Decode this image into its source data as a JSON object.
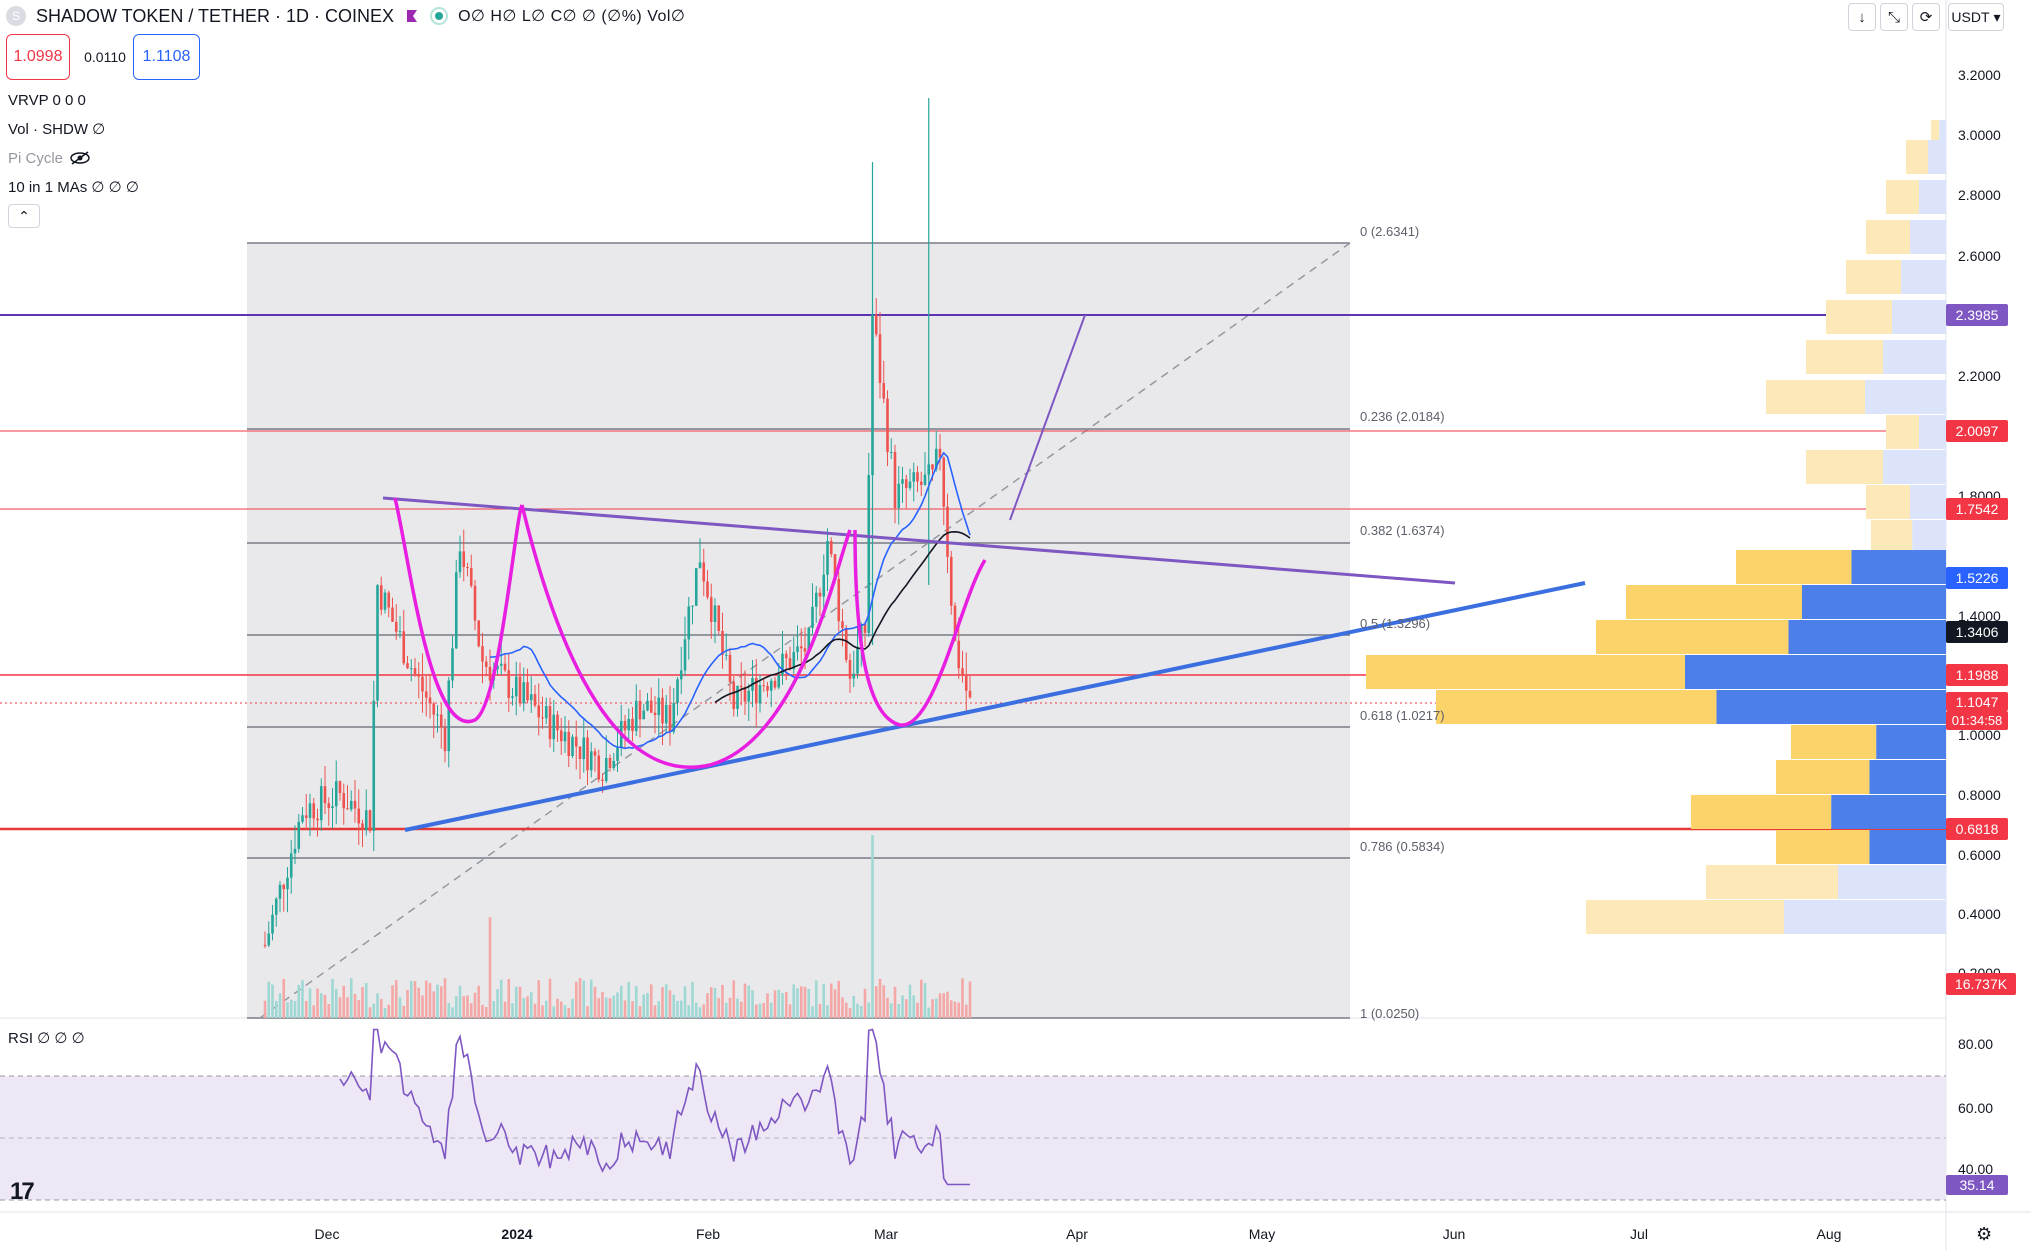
{
  "header": {
    "symbol_title": "SHADOW TOKEN / TETHER · 1D · COINEX",
    "coin_letter": "S",
    "ohlc_text": "O∅ H∅ L∅ C∅ ∅ (∅%) Vol∅",
    "sell_price": "1.0998",
    "spread": "0.0110",
    "buy_price": "1.1108"
  },
  "indicators": [
    {
      "label": "VRVP  0  0  0"
    },
    {
      "label": "Vol · SHDW  ∅"
    },
    {
      "label": "Pi Cycle"
    },
    {
      "label": "10 in 1 MAs  ∅  ∅  ∅"
    }
  ],
  "collapse_label": "⌃",
  "toolbar": {
    "currency": "USDT",
    "currency_caret": "▾",
    "btn_down": "↓",
    "btn_collapse": "⤡",
    "btn_replay": "⟳"
  },
  "price_axis": {
    "ticks": [
      "3.2000",
      "3.0000",
      "2.8000",
      "2.6000",
      "2.2000",
      "1.8000",
      "1.4000",
      "1.0000",
      "0.8000",
      "0.6000",
      "0.4000",
      "0.2000"
    ],
    "labels": [
      {
        "text": "2.3985",
        "color": "#7e57c2"
      },
      {
        "text": "2.0097",
        "color": "#f23645"
      },
      {
        "text": "1.7542",
        "color": "#f23645"
      },
      {
        "text": "1.5226",
        "color": "#2962ff"
      },
      {
        "text": "1.3406",
        "color": "#131722"
      },
      {
        "text": "1.1988",
        "color": "#f23645"
      },
      {
        "text": "1.1047",
        "color": "#f23645"
      },
      {
        "text": "01:34:58",
        "color": "#f23645"
      },
      {
        "text": "0.6818",
        "color": "#f23645"
      },
      {
        "text": "16.737K",
        "color": "#f23645"
      }
    ]
  },
  "fib_labels": [
    {
      "text": "0 (2.6341)"
    },
    {
      "text": "0.236 (2.0184)"
    },
    {
      "text": "0.382 (1.6374)"
    },
    {
      "text": "0.5 (1.3296)"
    },
    {
      "text": "0.618 (1.0217)"
    },
    {
      "text": "0.786 (0.5834)"
    },
    {
      "text": "1 (0.0250)"
    }
  ],
  "time_axis": [
    "Dec",
    "2024",
    "Feb",
    "Mar",
    "Apr",
    "May",
    "Jun",
    "Jul",
    "Aug"
  ],
  "rsi": {
    "title": "RSI  ∅  ∅  ∅",
    "ticks": [
      "80.00",
      "60.00",
      "40.00"
    ],
    "value": "35.14",
    "value_color": "#7e57c2"
  },
  "logo_text": "17",
  "settings_glyph": "⚙",
  "colors": {
    "up": "#26a69a",
    "down": "#ef5350",
    "purple_line": "#7e57c2",
    "blue_line": "#3b6fe0",
    "magenta_pattern": "#e81ee0",
    "vp_up": "#fcd36b",
    "vp_down": "#4d7fea"
  }
}
